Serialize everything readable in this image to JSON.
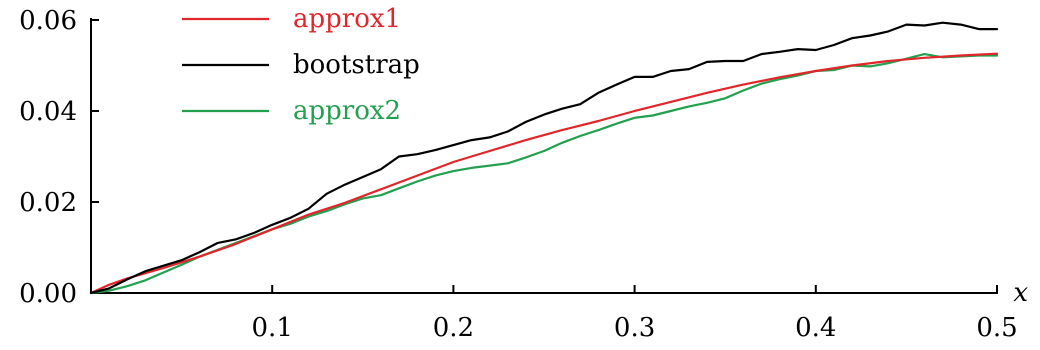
{
  "chart_data": {
    "type": "line",
    "title": "",
    "xlabel": "x",
    "ylabel": "",
    "xlim": [
      0,
      0.5
    ],
    "ylim": [
      0,
      0.06
    ],
    "x_ticks": [
      "0.1",
      "0.2",
      "0.3",
      "0.4",
      "0.5"
    ],
    "y_ticks": [
      "0.00",
      "0.02",
      "0.04",
      "0.06"
    ],
    "grid": false,
    "legend_position": "top-left",
    "series": [
      {
        "name": "approx1",
        "color": "#e0262b",
        "x": [
          0,
          0.01,
          0.02,
          0.04,
          0.06,
          0.08,
          0.1,
          0.12,
          0.14,
          0.16,
          0.18,
          0.2,
          0.22,
          0.24,
          0.26,
          0.28,
          0.3,
          0.32,
          0.34,
          0.36,
          0.38,
          0.4,
          0.42,
          0.44,
          0.46,
          0.48,
          0.5
        ],
        "y": [
          0,
          0.0018,
          0.0032,
          0.0055,
          0.008,
          0.0108,
          0.014,
          0.0172,
          0.0198,
          0.0228,
          0.0258,
          0.0288,
          0.0312,
          0.0336,
          0.0358,
          0.0378,
          0.04,
          0.042,
          0.044,
          0.0458,
          0.0474,
          0.0488,
          0.05,
          0.051,
          0.0517,
          0.0522,
          0.0526
        ]
      },
      {
        "name": "bootstrap",
        "color": "#000000",
        "x": [
          0,
          0.01,
          0.02,
          0.03,
          0.04,
          0.05,
          0.06,
          0.07,
          0.08,
          0.09,
          0.1,
          0.11,
          0.12,
          0.13,
          0.14,
          0.15,
          0.16,
          0.17,
          0.18,
          0.19,
          0.2,
          0.21,
          0.22,
          0.23,
          0.24,
          0.25,
          0.26,
          0.27,
          0.28,
          0.29,
          0.3,
          0.31,
          0.32,
          0.33,
          0.34,
          0.35,
          0.36,
          0.37,
          0.38,
          0.39,
          0.4,
          0.41,
          0.42,
          0.43,
          0.44,
          0.45,
          0.46,
          0.47,
          0.48,
          0.49,
          0.5
        ],
        "y": [
          0,
          0.001,
          0.003,
          0.0048,
          0.006,
          0.0072,
          0.009,
          0.011,
          0.0118,
          0.0132,
          0.015,
          0.0165,
          0.0185,
          0.0218,
          0.0238,
          0.0255,
          0.0272,
          0.03,
          0.0305,
          0.0314,
          0.0325,
          0.0336,
          0.0342,
          0.0355,
          0.0376,
          0.0392,
          0.0405,
          0.0415,
          0.044,
          0.0458,
          0.0475,
          0.0475,
          0.0488,
          0.0492,
          0.0508,
          0.051,
          0.051,
          0.0525,
          0.053,
          0.0536,
          0.0534,
          0.0545,
          0.056,
          0.0566,
          0.0575,
          0.059,
          0.0588,
          0.0594,
          0.059,
          0.058,
          0.058
        ]
      },
      {
        "name": "approx2",
        "color": "#22a04e",
        "x": [
          0,
          0.01,
          0.02,
          0.03,
          0.04,
          0.05,
          0.06,
          0.07,
          0.08,
          0.09,
          0.1,
          0.11,
          0.12,
          0.13,
          0.14,
          0.15,
          0.16,
          0.17,
          0.18,
          0.19,
          0.2,
          0.21,
          0.22,
          0.23,
          0.24,
          0.25,
          0.26,
          0.27,
          0.28,
          0.29,
          0.3,
          0.31,
          0.32,
          0.33,
          0.34,
          0.35,
          0.36,
          0.37,
          0.38,
          0.39,
          0.4,
          0.41,
          0.42,
          0.43,
          0.44,
          0.45,
          0.46,
          0.47,
          0.48,
          0.49,
          0.5
        ],
        "y": [
          0,
          0.0005,
          0.0015,
          0.0028,
          0.0045,
          0.0062,
          0.008,
          0.0095,
          0.011,
          0.0125,
          0.014,
          0.0152,
          0.0168,
          0.018,
          0.0195,
          0.0208,
          0.0215,
          0.023,
          0.0245,
          0.0258,
          0.0268,
          0.0275,
          0.028,
          0.0285,
          0.0298,
          0.0312,
          0.033,
          0.0345,
          0.0358,
          0.0372,
          0.0385,
          0.039,
          0.04,
          0.041,
          0.0418,
          0.0428,
          0.0445,
          0.046,
          0.047,
          0.0478,
          0.0488,
          0.049,
          0.05,
          0.0498,
          0.0505,
          0.0515,
          0.0525,
          0.0518,
          0.052,
          0.0522,
          0.0522
        ]
      }
    ]
  }
}
